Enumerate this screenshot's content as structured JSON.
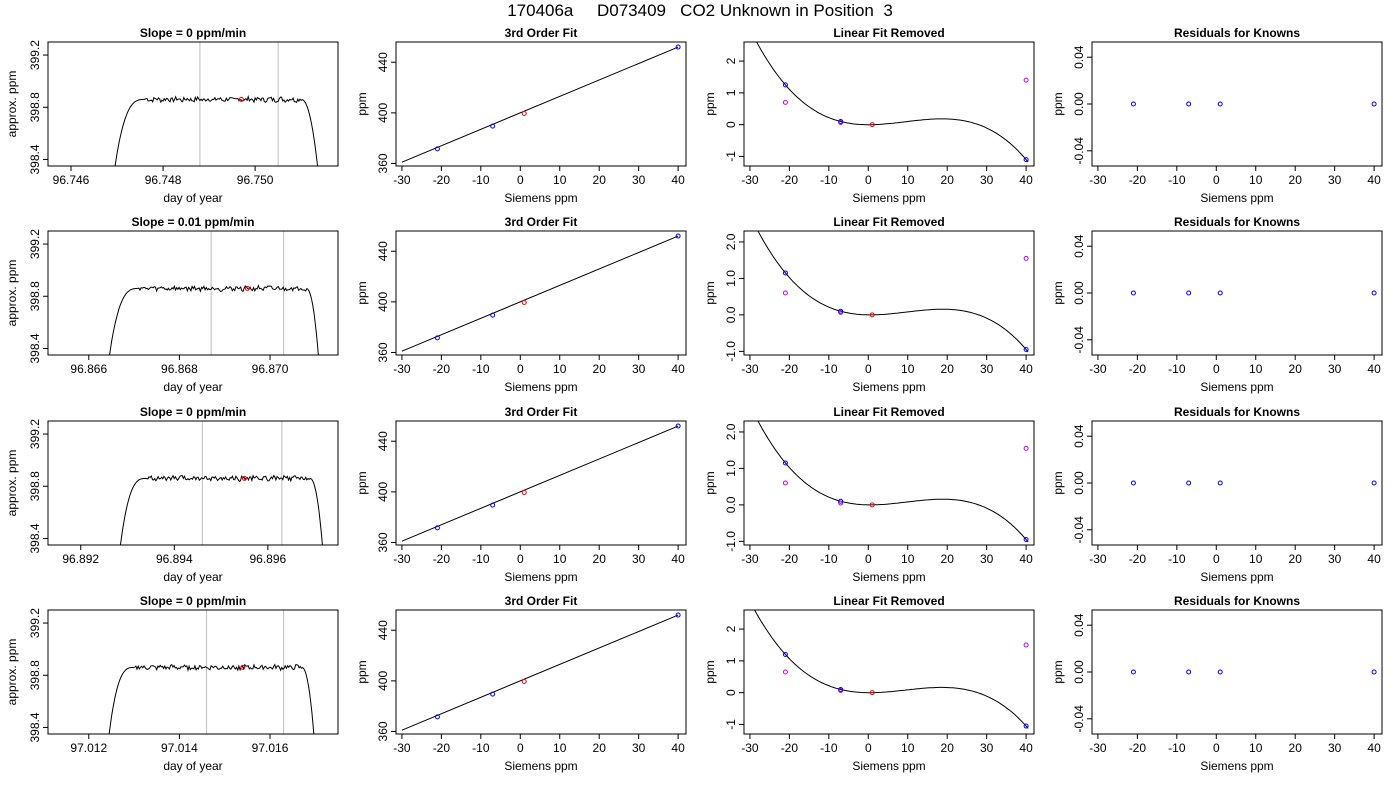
{
  "page": {
    "title": "170406a     D073409   CO2 Unknown in Position  3"
  },
  "labels": {
    "time_xlabel": "day of year",
    "time_ylabel": "approx. ppm",
    "cal_xlabel": "Siemens ppm",
    "cal_ylabel": "ppm",
    "fit_title": "3rd Order Fit",
    "lin_title": "Linear Fit Removed",
    "res_title": "Residuals for Knowns"
  },
  "colors": {
    "trace": "#000000",
    "vline": "#bebebe",
    "unknown": "#ff0000",
    "known": "#0000ff",
    "linear_point": "#c000ff"
  },
  "chart_data": [
    {
      "type": "line",
      "row": 1,
      "panel": "time",
      "title": "Slope =  0  ppm/min",
      "xlabel": "day of year",
      "ylabel": "approx. ppm",
      "xlim": [
        96.7455,
        96.7518
      ],
      "ylim": [
        398.35,
        399.3
      ],
      "xticks": [
        "96.746",
        "96.748",
        "96.750"
      ],
      "yticks": [
        "398.4",
        "398.8",
        "399.2"
      ],
      "trace": {
        "rise_start": 96.7469,
        "rise_end": 96.7476,
        "fall_start": 96.751,
        "fall_end": 96.7514,
        "plateau": 398.86,
        "min": 398.2
      },
      "vlines": [
        96.7488,
        96.7505
      ],
      "unknown_point": {
        "x": 96.7497,
        "y": 398.86
      }
    },
    {
      "type": "scatter",
      "row": 1,
      "panel": "fit",
      "title": "3rd Order Fit",
      "xlabel": "Siemens ppm",
      "ylabel": "ppm",
      "xlim": [
        -31.5,
        42
      ],
      "ylim": [
        358,
        456
      ],
      "xticks": [
        "-30",
        "-20",
        "-10",
        "0",
        "10",
        "20",
        "30",
        "40"
      ],
      "yticks": [
        "360",
        "400",
        "440"
      ],
      "line": {
        "x1": -30,
        "y1": 361,
        "x2": 40,
        "y2": 452
      },
      "known_points": [
        [
          -21,
          371.5
        ],
        [
          -7,
          389.5
        ],
        [
          40,
          452
        ]
      ],
      "unknown_point": [
        1,
        399.5
      ]
    },
    {
      "type": "scatter",
      "row": 1,
      "panel": "linear",
      "title": "Linear Fit Removed",
      "xlabel": "Siemens ppm",
      "ylabel": "ppm",
      "xlim": [
        -31.5,
        42
      ],
      "ylim": [
        -1.3,
        2.6
      ],
      "xticks": [
        "-30",
        "-20",
        "-10",
        "0",
        "10",
        "20",
        "30",
        "40"
      ],
      "yticks": [
        "-1",
        "0",
        "1",
        "2"
      ],
      "curve": {
        "x_from": -29,
        "x_to": 40.5,
        "pass": [
          [
            -21,
            1.25
          ],
          [
            -7,
            0.1
          ],
          [
            1,
            0
          ],
          [
            40,
            -1.1
          ]
        ]
      },
      "known_points": [
        [
          -21,
          1.25
        ],
        [
          -7,
          0.1
        ],
        [
          40,
          -1.1
        ]
      ],
      "unknown_point": [
        1,
        0
      ],
      "linear_points": [
        [
          -21,
          0.7
        ],
        [
          -7,
          0.07
        ],
        [
          40,
          1.4
        ]
      ]
    },
    {
      "type": "scatter",
      "row": 1,
      "panel": "residuals",
      "title": "Residuals for Knowns",
      "xlabel": "Siemens ppm",
      "ylabel": "ppm",
      "xlim": [
        -31.5,
        42
      ],
      "ylim": [
        -0.053,
        0.053
      ],
      "xticks": [
        "-30",
        "-20",
        "-10",
        "0",
        "10",
        "20",
        "30",
        "40"
      ],
      "yticks": [
        "-0.04",
        "0.00",
        "0.04"
      ],
      "known_points": [
        [
          -21,
          0
        ],
        [
          -7,
          0
        ],
        [
          1,
          0
        ],
        [
          40,
          0
        ]
      ]
    },
    {
      "type": "line",
      "row": 2,
      "panel": "time",
      "title": "Slope =  0.01  ppm/min",
      "xlabel": "day of year",
      "ylabel": "approx. ppm",
      "xlim": [
        96.8651,
        96.8715
      ],
      "ylim": [
        398.35,
        399.3
      ],
      "xticks": [
        "96.866",
        "96.868",
        "96.870"
      ],
      "yticks": [
        "398.4",
        "398.8",
        "399.2"
      ],
      "trace": {
        "rise_start": 96.8664,
        "rise_end": 96.8671,
        "fall_start": 96.8708,
        "fall_end": 96.8711,
        "plateau": 398.86,
        "min": 398.2
      },
      "vlines": [
        96.8687,
        96.8703
      ],
      "unknown_point": {
        "x": 96.8695,
        "y": 398.86
      }
    },
    {
      "type": "scatter",
      "row": 2,
      "panel": "fit",
      "title": "3rd Order Fit",
      "xlabel": "Siemens ppm",
      "ylabel": "ppm",
      "xlim": [
        -31.5,
        42
      ],
      "ylim": [
        358,
        456
      ],
      "xticks": [
        "-30",
        "-20",
        "-10",
        "0",
        "10",
        "20",
        "30",
        "40"
      ],
      "yticks": [
        "360",
        "400",
        "440"
      ],
      "line": {
        "x1": -30,
        "y1": 361,
        "x2": 40,
        "y2": 452
      },
      "known_points": [
        [
          -21,
          371.5
        ],
        [
          -7,
          389.5
        ],
        [
          40,
          452
        ]
      ],
      "unknown_point": [
        1,
        399.5
      ]
    },
    {
      "type": "scatter",
      "row": 2,
      "panel": "linear",
      "title": "Linear Fit Removed",
      "xlabel": "Siemens ppm",
      "ylabel": "ppm",
      "xlim": [
        -31.5,
        42
      ],
      "ylim": [
        -1.1,
        2.3
      ],
      "xticks": [
        "-30",
        "-20",
        "-10",
        "0",
        "10",
        "20",
        "30",
        "40"
      ],
      "yticks": [
        "-1.0",
        "0.0",
        "1.0",
        "2.0"
      ],
      "curve": {
        "x_from": -29,
        "x_to": 40.5,
        "pass": [
          [
            -21,
            1.15
          ],
          [
            -7,
            0.1
          ],
          [
            1,
            0
          ],
          [
            40,
            -0.95
          ]
        ]
      },
      "known_points": [
        [
          -21,
          1.15
        ],
        [
          -7,
          0.1
        ],
        [
          40,
          -0.95
        ]
      ],
      "unknown_point": [
        1,
        0
      ],
      "linear_points": [
        [
          -21,
          0.6
        ],
        [
          -7,
          0.07
        ],
        [
          40,
          1.55
        ]
      ]
    },
    {
      "type": "scatter",
      "row": 2,
      "panel": "residuals",
      "title": "Residuals for Knowns",
      "xlabel": "Siemens ppm",
      "ylabel": "ppm",
      "xlim": [
        -31.5,
        42
      ],
      "ylim": [
        -0.053,
        0.053
      ],
      "xticks": [
        "-30",
        "-20",
        "-10",
        "0",
        "10",
        "20",
        "30",
        "40"
      ],
      "yticks": [
        "-0.04",
        "0.00",
        "0.04"
      ],
      "known_points": [
        [
          -21,
          0
        ],
        [
          -7,
          0
        ],
        [
          1,
          0
        ],
        [
          40,
          0
        ]
      ]
    },
    {
      "type": "line",
      "row": 3,
      "panel": "time",
      "title": "Slope =  0  ppm/min",
      "xlabel": "day of year",
      "ylabel": "approx. ppm",
      "xlim": [
        96.8913,
        96.8975
      ],
      "ylim": [
        398.35,
        399.3
      ],
      "xticks": [
        "96.892",
        "96.894",
        "96.896"
      ],
      "yticks": [
        "398.4",
        "398.8",
        "399.2"
      ],
      "trace": {
        "rise_start": 96.8928,
        "rise_end": 96.8934,
        "fall_start": 96.8969,
        "fall_end": 96.8972,
        "plateau": 398.86,
        "min": 398.2
      },
      "vlines": [
        96.8946,
        96.8963
      ],
      "unknown_point": {
        "x": 96.8955,
        "y": 398.86
      }
    },
    {
      "type": "scatter",
      "row": 3,
      "panel": "fit",
      "title": "3rd Order Fit",
      "xlabel": "Siemens ppm",
      "ylabel": "ppm",
      "xlim": [
        -31.5,
        42
      ],
      "ylim": [
        358,
        456
      ],
      "xticks": [
        "-30",
        "-20",
        "-10",
        "0",
        "10",
        "20",
        "30",
        "40"
      ],
      "yticks": [
        "360",
        "400",
        "440"
      ],
      "line": {
        "x1": -30,
        "y1": 361,
        "x2": 40,
        "y2": 452
      },
      "known_points": [
        [
          -21,
          371.5
        ],
        [
          -7,
          389.5
        ],
        [
          40,
          452
        ]
      ],
      "unknown_point": [
        1,
        399.5
      ]
    },
    {
      "type": "scatter",
      "row": 3,
      "panel": "linear",
      "title": "Linear Fit Removed",
      "xlabel": "Siemens ppm",
      "ylabel": "ppm",
      "xlim": [
        -31.5,
        42
      ],
      "ylim": [
        -1.1,
        2.3
      ],
      "xticks": [
        "-30",
        "-20",
        "-10",
        "0",
        "10",
        "20",
        "30",
        "40"
      ],
      "yticks": [
        "-1.0",
        "0.0",
        "1.0",
        "2.0"
      ],
      "curve": {
        "x_from": -29,
        "x_to": 40.5,
        "pass": [
          [
            -21,
            1.15
          ],
          [
            -7,
            0.1
          ],
          [
            1,
            0
          ],
          [
            40,
            -0.95
          ]
        ]
      },
      "known_points": [
        [
          -21,
          1.15
        ],
        [
          -7,
          0.1
        ],
        [
          40,
          -0.95
        ]
      ],
      "unknown_point": [
        1,
        0
      ],
      "linear_points": [
        [
          -21,
          0.6
        ],
        [
          -7,
          0.05
        ],
        [
          40,
          1.55
        ]
      ]
    },
    {
      "type": "scatter",
      "row": 3,
      "panel": "residuals",
      "title": "Residuals for Knowns",
      "xlabel": "Siemens ppm",
      "ylabel": "ppm",
      "xlim": [
        -31.5,
        42
      ],
      "ylim": [
        -0.053,
        0.053
      ],
      "xticks": [
        "-30",
        "-20",
        "-10",
        "0",
        "10",
        "20",
        "30",
        "40"
      ],
      "yticks": [
        "-0.04",
        "0.00",
        "0.04"
      ],
      "known_points": [
        [
          -21,
          0
        ],
        [
          -7,
          0
        ],
        [
          1,
          0
        ],
        [
          40,
          0
        ]
      ]
    },
    {
      "type": "line",
      "row": 4,
      "panel": "time",
      "title": "Slope =  0  ppm/min",
      "xlabel": "day of year",
      "ylabel": "approx. ppm",
      "xlim": [
        97.0111,
        97.0175
      ],
      "ylim": [
        398.35,
        399.3
      ],
      "xticks": [
        "97.012",
        "97.014",
        "97.016"
      ],
      "yticks": [
        "398.4",
        "398.8",
        "399.2"
      ],
      "trace": {
        "rise_start": 97.0124,
        "rise_end": 97.013,
        "fall_start": 97.0167,
        "fall_end": 97.017,
        "plateau": 398.86,
        "min": 398.2
      },
      "vlines": [
        97.0146,
        97.0163
      ],
      "unknown_point": {
        "x": 97.0154,
        "y": 398.86
      }
    },
    {
      "type": "scatter",
      "row": 4,
      "panel": "fit",
      "title": "3rd Order Fit",
      "xlabel": "Siemens ppm",
      "ylabel": "ppm",
      "xlim": [
        -31.5,
        42
      ],
      "ylim": [
        358,
        456
      ],
      "xticks": [
        "-30",
        "-20",
        "-10",
        "0",
        "10",
        "20",
        "30",
        "40"
      ],
      "yticks": [
        "360",
        "400",
        "440"
      ],
      "line": {
        "x1": -30,
        "y1": 361,
        "x2": 40,
        "y2": 452
      },
      "known_points": [
        [
          -21,
          371.5
        ],
        [
          -7,
          389.5
        ],
        [
          40,
          452
        ]
      ],
      "unknown_point": [
        1,
        399.5
      ]
    },
    {
      "type": "scatter",
      "row": 4,
      "panel": "linear",
      "title": "Linear Fit Removed",
      "xlabel": "Siemens ppm",
      "ylabel": "ppm",
      "xlim": [
        -31.5,
        42
      ],
      "ylim": [
        -1.3,
        2.6
      ],
      "xticks": [
        "-30",
        "-20",
        "-10",
        "0",
        "10",
        "20",
        "30",
        "40"
      ],
      "yticks": [
        "-1",
        "0",
        "1",
        "2"
      ],
      "curve": {
        "x_from": -29,
        "x_to": 40.5,
        "pass": [
          [
            -21,
            1.2
          ],
          [
            -7,
            0.1
          ],
          [
            1,
            0
          ],
          [
            40,
            -1.05
          ]
        ]
      },
      "known_points": [
        [
          -21,
          1.2
        ],
        [
          -7,
          0.1
        ],
        [
          40,
          -1.05
        ]
      ],
      "unknown_point": [
        1,
        0
      ],
      "linear_points": [
        [
          -21,
          0.65
        ],
        [
          -7,
          0.07
        ],
        [
          40,
          1.5
        ]
      ]
    },
    {
      "type": "scatter",
      "row": 4,
      "panel": "residuals",
      "title": "Residuals for Knowns",
      "xlabel": "Siemens ppm",
      "ylabel": "ppm",
      "xlim": [
        -31.5,
        42
      ],
      "ylim": [
        -0.053,
        0.053
      ],
      "xticks": [
        "-30",
        "-20",
        "-10",
        "0",
        "10",
        "20",
        "30",
        "40"
      ],
      "yticks": [
        "-0.04",
        "0.00",
        "0.04"
      ],
      "known_points": [
        [
          -21,
          0
        ],
        [
          -7,
          0
        ],
        [
          1,
          0
        ],
        [
          40,
          0
        ]
      ]
    }
  ]
}
